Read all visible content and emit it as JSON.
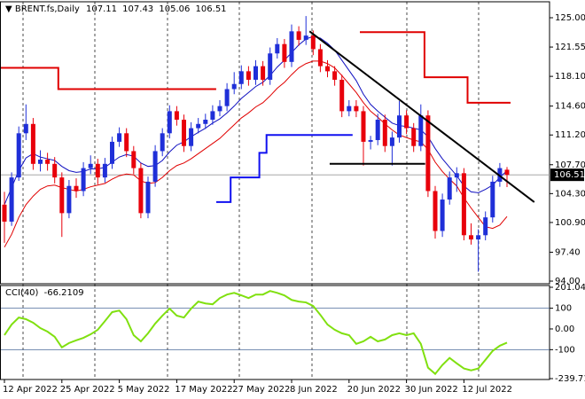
{
  "chart_data": {
    "type": "candlestick",
    "title": "BRENT.fs,Daily",
    "categories": [
      "12 Apr 2022",
      null,
      null,
      null,
      null,
      null,
      null,
      null,
      "25 Apr 2022",
      null,
      null,
      null,
      null,
      null,
      null,
      null,
      "5 May 2022",
      null,
      null,
      null,
      null,
      null,
      null,
      null,
      "17 May 2022",
      null,
      null,
      null,
      null,
      null,
      null,
      null,
      "27 May 2022",
      null,
      null,
      null,
      null,
      null,
      null,
      null,
      "8 Jun 2022",
      null,
      null,
      null,
      null,
      null,
      null,
      null,
      "20 Jun 2022",
      null,
      null,
      null,
      null,
      null,
      null,
      null,
      "30 Jun 2022",
      null,
      null,
      null,
      null,
      null,
      null,
      null,
      "12 Jul 2022",
      null,
      null,
      null,
      null,
      null,
      null
    ],
    "open": [
      103.0,
      101.0,
      106.2,
      111.4,
      112.5,
      107.8,
      108.3,
      107.8,
      106.2,
      102.0,
      105.2,
      104.6,
      107.3,
      107.8,
      106.2,
      107.8,
      110.4,
      111.4,
      109.3,
      107.3,
      102.0,
      105.7,
      109.3,
      111.4,
      114.0,
      113.0,
      109.9,
      112.0,
      112.5,
      113.0,
      114.0,
      114.6,
      116.6,
      117.2,
      118.7,
      117.7,
      119.3,
      117.7,
      120.8,
      121.9,
      119.8,
      123.4,
      122.4,
      122.9,
      121.3,
      119.3,
      118.7,
      117.7,
      114.0,
      114.6,
      114.0,
      110.4,
      110.6,
      113.0,
      109.9,
      110.9,
      113.5,
      112.0,
      109.9,
      113.5,
      104.6,
      99.9,
      103.6,
      106.2,
      106.7,
      99.4,
      98.9,
      99.4,
      101.5,
      105.7,
      107.11
    ],
    "high": [
      104.5,
      106.8,
      112.2,
      114.8,
      113.2,
      109.4,
      109.1,
      108.6,
      106.8,
      105.9,
      106.1,
      108.0,
      108.8,
      108.4,
      108.5,
      111.0,
      112.1,
      112.0,
      109.9,
      107.9,
      106.3,
      110.0,
      112.0,
      114.7,
      114.6,
      113.6,
      112.7,
      113.2,
      113.7,
      114.7,
      115.3,
      117.3,
      118.6,
      119.4,
      119.3,
      120.0,
      119.9,
      121.5,
      122.6,
      122.5,
      124.2,
      124.0,
      125.2,
      123.5,
      121.9,
      120.0,
      119.3,
      118.3,
      115.3,
      115.3,
      114.6,
      111.1,
      113.7,
      113.6,
      111.6,
      115.2,
      114.1,
      112.6,
      114.8,
      114.1,
      105.2,
      104.3,
      106.9,
      107.4,
      107.3,
      100.8,
      100.1,
      102.2,
      106.4,
      107.9,
      107.43
    ],
    "low": [
      98.5,
      100.5,
      105.8,
      110.6,
      107.1,
      106.9,
      107.0,
      105.5,
      99.2,
      101.4,
      103.8,
      104.0,
      106.6,
      105.4,
      105.6,
      107.2,
      109.8,
      108.6,
      106.6,
      101.4,
      101.4,
      105.1,
      108.7,
      110.8,
      112.3,
      109.2,
      109.3,
      111.4,
      111.9,
      112.4,
      113.4,
      114.0,
      116.0,
      116.6,
      117.0,
      117.1,
      117.0,
      117.1,
      120.2,
      119.1,
      119.2,
      121.7,
      121.8,
      120.6,
      118.6,
      118.0,
      117.0,
      113.3,
      113.4,
      113.3,
      107.6,
      109.5,
      110.0,
      109.2,
      107.6,
      110.3,
      111.3,
      109.2,
      109.3,
      103.9,
      99.0,
      99.2,
      103.0,
      104.5,
      98.8,
      98.3,
      95.1,
      98.8,
      100.9,
      105.1,
      105.06
    ],
    "close": [
      101.0,
      106.2,
      111.4,
      112.5,
      107.8,
      108.3,
      107.8,
      106.2,
      102.0,
      105.2,
      104.6,
      107.3,
      107.8,
      106.2,
      107.8,
      110.4,
      111.4,
      109.3,
      107.3,
      102.0,
      105.7,
      109.3,
      111.4,
      114.0,
      113.0,
      109.9,
      112.0,
      112.5,
      113.0,
      114.0,
      114.6,
      116.6,
      117.2,
      118.7,
      117.7,
      119.3,
      117.7,
      120.8,
      121.9,
      119.8,
      123.4,
      122.4,
      122.9,
      121.3,
      119.3,
      118.7,
      117.7,
      114.0,
      114.6,
      114.0,
      110.4,
      110.6,
      113.0,
      109.9,
      110.9,
      113.5,
      112.0,
      109.9,
      113.5,
      104.6,
      99.9,
      103.6,
      106.2,
      106.7,
      99.4,
      98.9,
      99.4,
      101.5,
      105.7,
      107.3,
      106.51
    ],
    "up_color": "#1f2fd8",
    "down_color": "#e8000b",
    "ylim": [
      93.69,
      126.88
    ],
    "yticks": [
      {
        "value": 125,
        "label": "125.00"
      },
      121.55,
      {
        "value": 118.1,
        "label": "118.10"
      },
      {
        "value": 114.6,
        "label": "114.60"
      },
      {
        "value": 111.2,
        "label": "111.20"
      },
      {
        "value": 107.7,
        "label": "107.70"
      },
      {
        "value": 104.3,
        "label": "104.30"
      },
      {
        "value": 100.9,
        "label": "100.90"
      },
      {
        "value": 97.4,
        "label": "97.40"
      },
      {
        "value": 94,
        "label": "94.00"
      }
    ],
    "series": [
      {
        "color": "#1010c0",
        "width": 1,
        "values": [
          103,
          105,
          107,
          108.5,
          109,
          108.6,
          108.4,
          108.2,
          107.5,
          107,
          106.8,
          106.9,
          107.2,
          107.2,
          107.4,
          108,
          108.6,
          108.9,
          108.7,
          107.9,
          107.5,
          107.6,
          108.2,
          109.2,
          110,
          110.4,
          111,
          111.5,
          112,
          112.6,
          113.1,
          113.8,
          114.6,
          115.5,
          116.2,
          116.9,
          117.4,
          118.2,
          119.2,
          120,
          120.9,
          121.8,
          122.5,
          122.8,
          122.6,
          122,
          121.2,
          120,
          118.8,
          117.6,
          116,
          114.8,
          114,
          113.3,
          112.6,
          112.3,
          112.2,
          112,
          111.8,
          111,
          109.6,
          108.4,
          107.4,
          106.4,
          105.2,
          104.5,
          104.4,
          104.8,
          105.3,
          106.2,
          107
        ]
      },
      {
        "color": "#e00000",
        "width": 1,
        "values": [
          98,
          99.5,
          101.5,
          103,
          104,
          104.8,
          105.2,
          105.3,
          105,
          104.8,
          104.6,
          104.8,
          105.1,
          105.3,
          105.5,
          106,
          106.4,
          106.6,
          106.5,
          105.8,
          105.5,
          105.6,
          106.2,
          107,
          107.6,
          107.9,
          108.4,
          109,
          109.6,
          110.2,
          110.8,
          111.6,
          112.4,
          113.2,
          113.8,
          114.5,
          115,
          115.8,
          116.7,
          117.4,
          118.3,
          119.1,
          119.6,
          119.9,
          119.9,
          119.6,
          119.1,
          118.2,
          117.2,
          116.2,
          115,
          114,
          113.3,
          112.5,
          111.8,
          111.2,
          110.9,
          110.6,
          110.4,
          109.5,
          108,
          106.9,
          106,
          105.2,
          103.8,
          102.6,
          101.5,
          100.4,
          100.2,
          100.6,
          101.6
        ]
      },
      {
        "color": "#1010f0",
        "width": 2,
        "step": true,
        "values": [
          null,
          null,
          null,
          null,
          null,
          null,
          null,
          null,
          null,
          null,
          null,
          null,
          null,
          null,
          null,
          null,
          null,
          null,
          null,
          null,
          null,
          null,
          null,
          null,
          null,
          null,
          null,
          null,
          null,
          null,
          103.3,
          103.3,
          106.2,
          106.2,
          106.2,
          106.2,
          109.1,
          111.2,
          111.2,
          111.2,
          111.2,
          111.2,
          111.2,
          111.2,
          111.2,
          111.2,
          111.2,
          111.2,
          111.2,
          null,
          null,
          null,
          null,
          null,
          null,
          null,
          null,
          null,
          null,
          null,
          null,
          null,
          null,
          null,
          null,
          null,
          null,
          null,
          null,
          null,
          null
        ]
      },
      {
        "color": "#e00000",
        "width": 2,
        "step": true,
        "values": [
          119.1,
          119.1,
          119.1,
          119.1,
          119.1,
          119.1,
          119.1,
          119.1,
          116.6,
          116.6,
          116.6,
          116.6,
          116.6,
          116.6,
          116.6,
          116.6,
          116.6,
          116.6,
          116.6,
          116.6,
          116.6,
          116.6,
          116.6,
          116.6,
          116.6,
          116.6,
          116.6,
          116.6,
          116.6,
          116.6,
          null,
          null,
          null,
          null,
          null,
          null,
          null,
          null,
          null,
          null,
          null,
          null,
          null,
          null,
          null,
          null,
          null,
          null,
          null,
          null,
          123.3,
          123.3,
          123.3,
          123.3,
          123.3,
          123.3,
          123.3,
          123.3,
          123.3,
          118.0,
          118.0,
          118.0,
          118.0,
          118.0,
          118.0,
          115.0,
          115.0,
          115.0,
          115.0,
          115.0,
          115.0
        ]
      }
    ],
    "trendlines": [
      {
        "x": [
          42.5,
          73.8
        ],
        "y": [
          123.4,
          103.3
        ]
      },
      {
        "x": [
          45.3,
          58.6
        ],
        "y": [
          107.8,
          107.8
        ]
      }
    ],
    "cci": {
      "label": "CCI(40)",
      "color": "#80e010",
      "values": [
        -30,
        21,
        55,
        47,
        30,
        4,
        -13,
        -38,
        -89,
        -68,
        -55,
        -43,
        -26,
        -4,
        38,
        81,
        89,
        47,
        -30,
        -60,
        -21,
        26,
        64,
        98,
        64,
        55,
        98,
        132,
        123,
        119,
        149,
        166,
        174,
        162,
        149,
        166,
        166,
        183,
        174,
        162,
        140,
        132,
        128,
        111,
        68,
        21,
        -4,
        -21,
        -30,
        -72,
        -60,
        -38,
        -60,
        -51,
        -30,
        -21,
        -30,
        -21,
        -72,
        -187,
        -217,
        -174,
        -140,
        -166,
        -191,
        -200,
        -191,
        -149,
        -106,
        -81,
        -66.2109
      ],
      "ylim": [
        -239.713,
        201.04
      ],
      "yticks": [
        201.04,
        100,
        {
          "value": 0,
          "label": "0.00"
        },
        -100,
        -239.713
      ],
      "levels": [
        100,
        -100
      ]
    }
  }
}
